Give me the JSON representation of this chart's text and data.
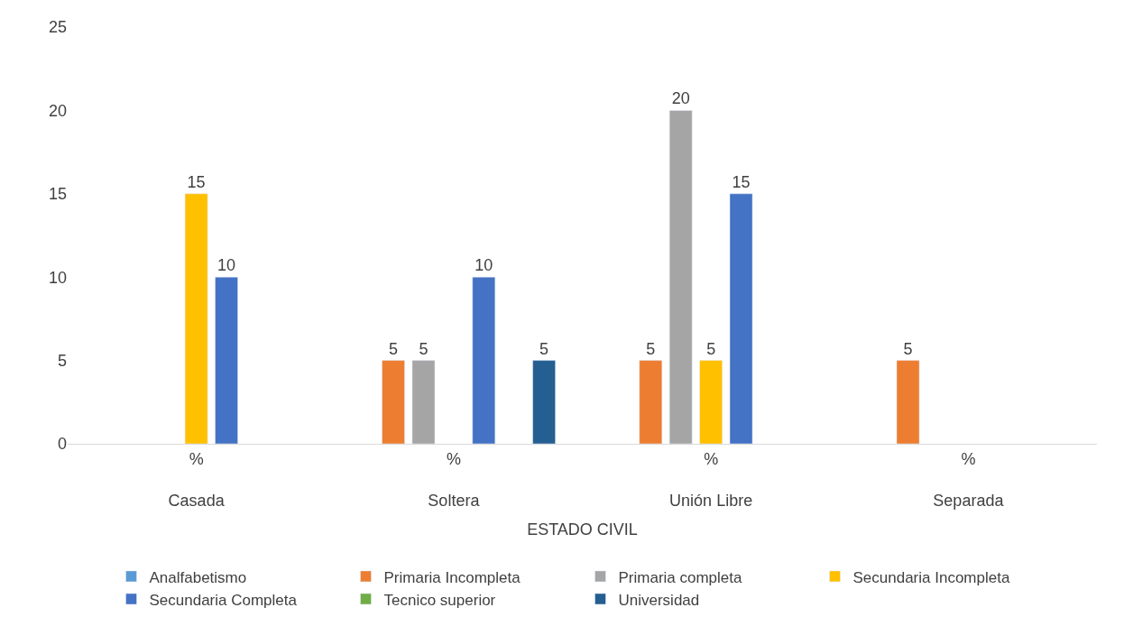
{
  "chart_data": {
    "type": "bar",
    "xlabel": "ESTADO CIVIL",
    "categories": [
      "%\nCasada",
      "%\nSoltera",
      "%\nUnión Libre",
      "%\nSeparada"
    ],
    "series": [
      {
        "name": "Analfabetismo",
        "color": "#5b9bd5",
        "values": [
          null,
          null,
          null,
          null
        ]
      },
      {
        "name": "Primaria Incompleta",
        "color": "#ed7d31",
        "values": [
          null,
          5,
          5,
          5
        ]
      },
      {
        "name": "Primaria completa",
        "color": "#a5a5a5",
        "values": [
          null,
          5,
          20,
          null
        ]
      },
      {
        "name": "Secundaria Incompleta",
        "color": "#ffc000",
        "values": [
          15,
          null,
          5,
          null
        ]
      },
      {
        "name": "Secundaria Completa",
        "color": "#4472c4",
        "values": [
          10,
          10,
          15,
          null
        ]
      },
      {
        "name": "Tecnico superior",
        "color": "#70ad47",
        "values": [
          null,
          null,
          null,
          null
        ]
      },
      {
        "name": "Universidad",
        "color": "#255e91",
        "values": [
          null,
          5,
          null,
          null
        ]
      }
    ],
    "ylim": [
      0,
      25
    ],
    "yticks": [
      0,
      5,
      10,
      15,
      20,
      25
    ],
    "legend": "bottom",
    "data_labels": true
  }
}
